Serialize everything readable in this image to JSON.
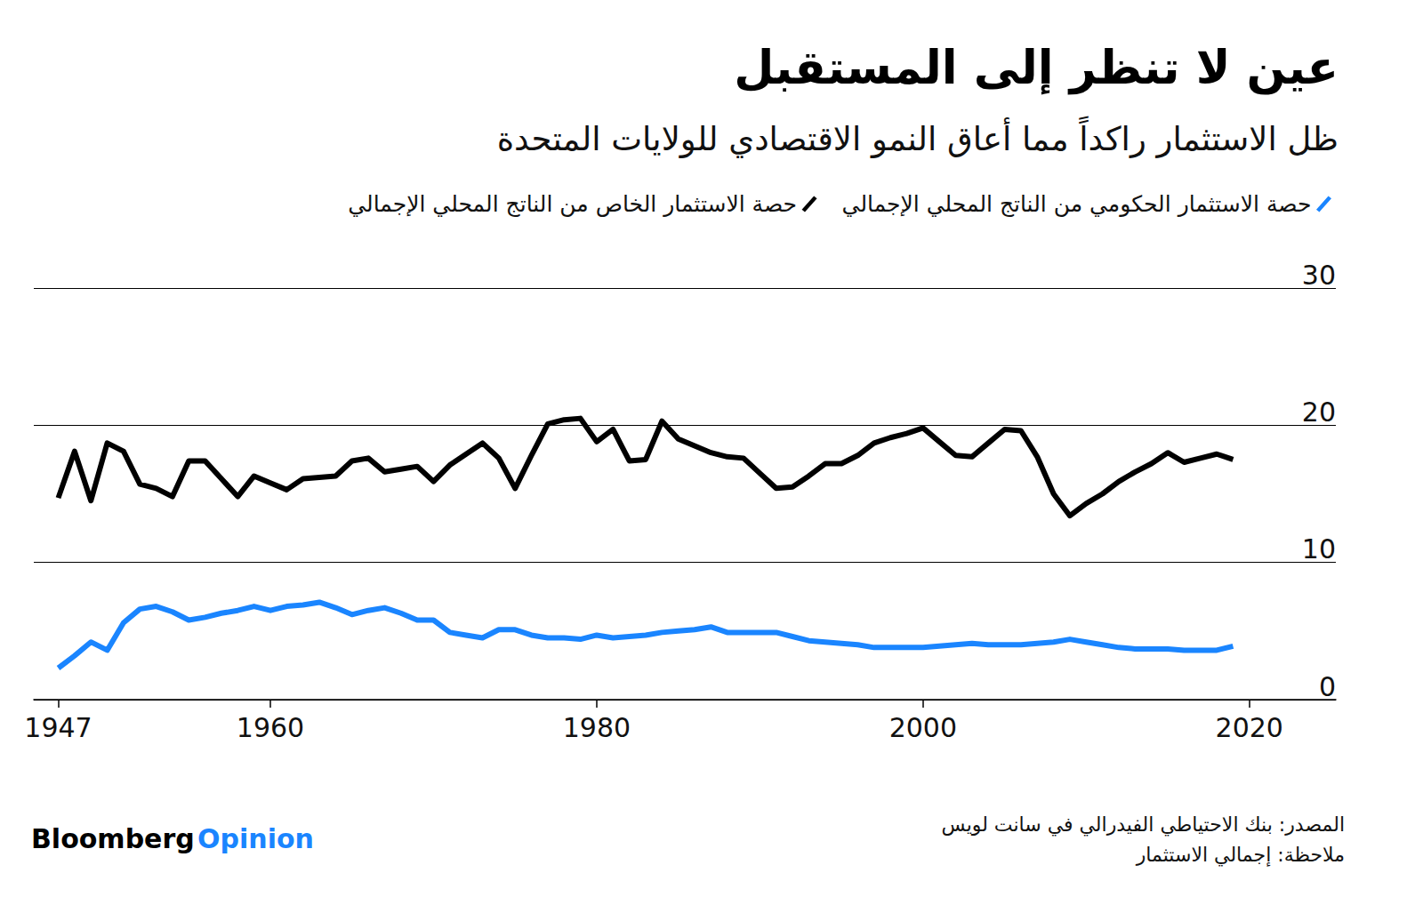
{
  "chart_data": {
    "type": "line",
    "title": "عين لا تنظر إلى المستقبل",
    "subtitle": "ظل الاستثمار راكداً مما أعاق النمو الاقتصادي للولايات المتحدة",
    "source": "المصدر: بنك الاحتياطي الفيدرالي في سانت لويس",
    "note": "ملاحظة: إجمالي الاستثمار",
    "credit": "Bloomberg Opinion",
    "x": [
      1947,
      1948,
      1949,
      1950,
      1951,
      1952,
      1953,
      1954,
      1955,
      1956,
      1957,
      1958,
      1959,
      1960,
      1961,
      1962,
      1963,
      1964,
      1965,
      1966,
      1967,
      1968,
      1969,
      1970,
      1971,
      1972,
      1973,
      1974,
      1975,
      1976,
      1977,
      1978,
      1979,
      1980,
      1981,
      1982,
      1983,
      1984,
      1985,
      1986,
      1987,
      1988,
      1989,
      1990,
      1991,
      1992,
      1993,
      1994,
      1995,
      1996,
      1997,
      1998,
      1999,
      2000,
      2001,
      2002,
      2003,
      2004,
      2005,
      2006,
      2007,
      2008,
      2009,
      2010,
      2011,
      2012,
      2013,
      2014,
      2015,
      2016,
      2017,
      2018,
      2019
    ],
    "series": [
      {
        "name": "حصة الاستثمار الحكومي من الناتج المحلي الإجمالي",
        "color": "#1a85ff",
        "values": [
          2.3,
          3.2,
          4.2,
          3.6,
          5.6,
          6.6,
          6.8,
          6.4,
          5.8,
          6.0,
          6.3,
          6.5,
          6.8,
          6.5,
          6.8,
          6.9,
          7.1,
          6.7,
          6.2,
          6.5,
          6.7,
          6.3,
          5.8,
          5.8,
          4.9,
          4.7,
          4.5,
          5.1,
          5.1,
          4.7,
          4.5,
          4.5,
          4.4,
          4.7,
          4.5,
          4.6,
          4.7,
          4.9,
          5.0,
          5.1,
          5.3,
          4.9,
          4.9,
          4.9,
          4.9,
          4.6,
          4.3,
          4.2,
          4.1,
          4.0,
          3.8,
          3.8,
          3.8,
          3.8,
          3.9,
          4.0,
          4.1,
          4.0,
          4.0,
          4.0,
          4.1,
          4.2,
          4.4,
          4.2,
          4.0,
          3.8,
          3.7,
          3.7,
          3.7,
          3.6,
          3.6,
          3.6,
          3.9
        ]
      },
      {
        "name": "حصة الاستثمار الخاص من الناتج المحلي الإجمالي",
        "color": "#000000",
        "values": [
          14.7,
          18.1,
          14.5,
          18.7,
          18.1,
          15.7,
          15.4,
          14.8,
          17.4,
          17.4,
          16.1,
          14.8,
          16.3,
          15.8,
          15.3,
          16.1,
          16.2,
          16.3,
          17.4,
          17.6,
          16.6,
          16.8,
          17.0,
          15.9,
          17.1,
          17.9,
          18.7,
          17.6,
          15.4,
          17.8,
          20.1,
          20.4,
          20.5,
          18.8,
          19.7,
          17.4,
          17.5,
          20.3,
          19.0,
          18.5,
          18.0,
          17.7,
          17.6,
          16.5,
          15.4,
          15.5,
          16.3,
          17.2,
          17.2,
          17.8,
          18.7,
          19.1,
          19.4,
          19.8,
          18.8,
          17.8,
          17.7,
          18.7,
          19.7,
          19.6,
          17.7,
          15.0,
          13.4,
          14.3,
          15.0,
          15.9,
          16.6,
          17.2,
          18.0,
          17.3,
          17.6,
          17.9,
          17.5
        ]
      }
    ],
    "xlim": [
      1945.5,
      2025.3
    ],
    "xticks": [
      1947,
      1960,
      1980,
      2000,
      2020
    ],
    "ylim": [
      0,
      30
    ],
    "yticks": [
      0,
      10,
      20,
      30
    ],
    "grid": true,
    "legend": "top-right"
  }
}
